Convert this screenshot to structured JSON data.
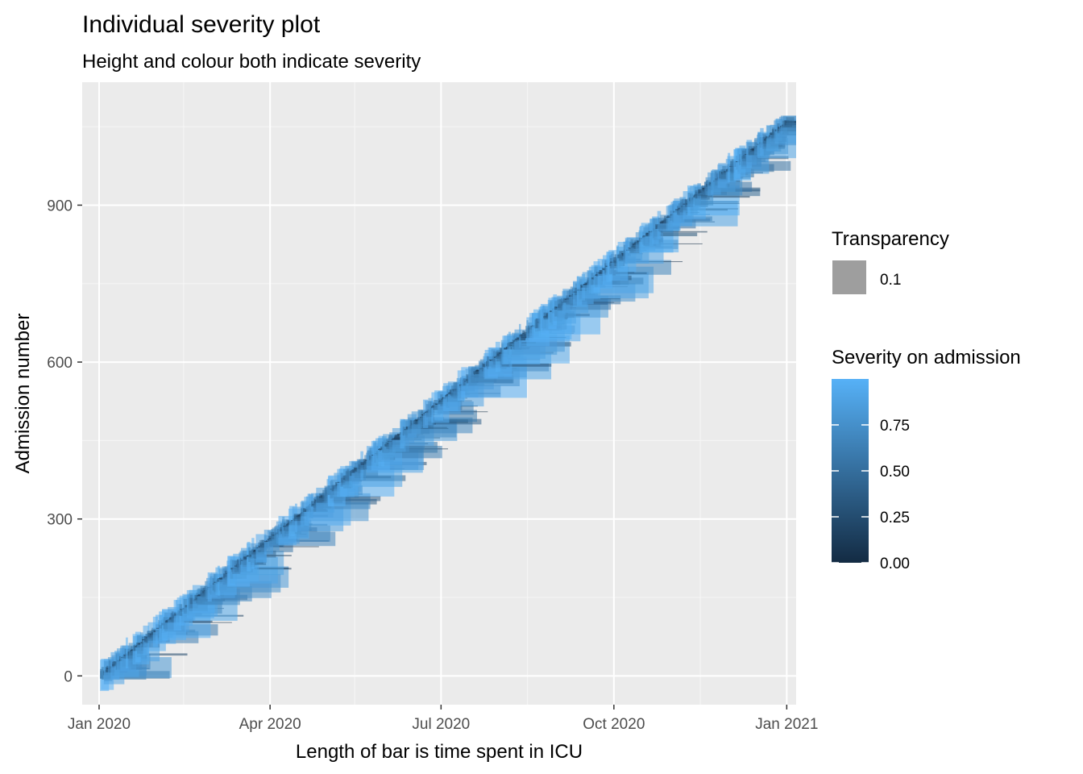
{
  "chart_data": {
    "type": "bar",
    "title": "Individual severity plot",
    "subtitle": "Height and colour both indicate severity",
    "xlabel": "Length of bar is time spent in ICU",
    "ylabel": "Admission number",
    "x_range": [
      "2019-12-23",
      "2021-01-06"
    ],
    "ylim": [
      -55,
      1135
    ],
    "x_ticks": [
      {
        "date": "2020-01-01",
        "label": "Jan 2020"
      },
      {
        "date": "2020-04-01",
        "label": "Apr 2020"
      },
      {
        "date": "2020-07-01",
        "label": "Jul 2020"
      },
      {
        "date": "2020-10-01",
        "label": "Oct 2020"
      },
      {
        "date": "2021-01-01",
        "label": "Jan 2021"
      }
    ],
    "x_minor_ticks": [
      "2020-02-15",
      "2020-05-16",
      "2020-08-16",
      "2020-11-16"
    ],
    "y_ticks": [
      0,
      300,
      600,
      900
    ],
    "y_minor_ticks": [
      150,
      450,
      750,
      1050
    ],
    "grid": true,
    "legend_placement": "right",
    "legends": {
      "transparency": {
        "title": "Transparency",
        "label": "0.1",
        "swatch_color": "#9e9e9e"
      },
      "severity": {
        "title": "Severity on admission",
        "ticks": [
          0.0,
          0.25,
          0.5,
          0.75
        ],
        "tick_labels": [
          "0.00",
          "0.25",
          "0.50",
          "0.75"
        ],
        "range": [
          0,
          1
        ],
        "low_color": "#132b43",
        "high_color": "#56b1f7"
      }
    },
    "colors": {
      "panel": "#ebebeb",
      "grid_major": "#ffffff",
      "grid_minor": "#f6f6f6",
      "tick_text": "#4d4d4d"
    },
    "series_note": "One bar per admission: starts at admission date, length = ICU stay (days), height and colour = severity on admission. Admissions spread roughly uniformly over 2020.",
    "samples": [
      {
        "admission": 10,
        "start": "2020-01-02",
        "days": 5,
        "severity": 0.8
      },
      {
        "admission": 55,
        "start": "2020-01-11",
        "days": 14,
        "severity": 0.85
      },
      {
        "admission": 105,
        "start": "2020-01-26",
        "days": 28,
        "severity": 0.35
      },
      {
        "admission": 180,
        "start": "2020-03-06",
        "days": 18,
        "severity": 0.5
      },
      {
        "admission": 270,
        "start": "2020-03-27",
        "days": 20,
        "severity": 0.2
      },
      {
        "admission": 330,
        "start": "2020-04-12",
        "days": 14,
        "severity": 0.85
      },
      {
        "admission": 520,
        "start": "2020-06-20",
        "days": 18,
        "severity": 0.2
      },
      {
        "admission": 640,
        "start": "2020-07-21",
        "days": 30,
        "severity": 0.98
      },
      {
        "admission": 760,
        "start": "2020-09-15",
        "days": 8,
        "severity": 0.95
      },
      {
        "admission": 900,
        "start": "2020-10-22",
        "days": 22,
        "severity": 0.75
      },
      {
        "admission": 1050,
        "start": "2020-12-18",
        "days": 15,
        "severity": 0.5
      }
    ]
  }
}
